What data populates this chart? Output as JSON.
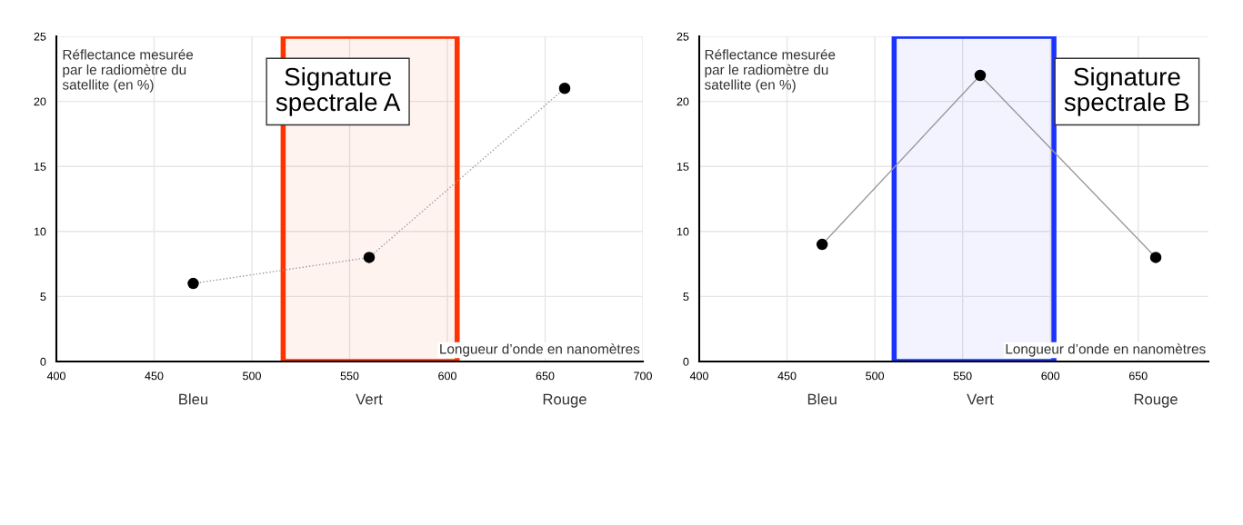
{
  "chart_data": [
    {
      "type": "line",
      "title": "Signature\nspectrale A",
      "ylabel": "Réflectance mesurée\npar le radiomètre du\nsatellite (en %)",
      "xlabel": "Longueur d’onde en nanomètres",
      "x": [
        470,
        560,
        660
      ],
      "series": [
        {
          "color": "#999999",
          "values": [
            6,
            8,
            21
          ]
        }
      ],
      "xlim": [
        400,
        700
      ],
      "xticks": [
        400,
        450,
        500,
        550,
        600,
        650,
        700
      ],
      "ylim": [
        0,
        25
      ],
      "yticks": [
        0,
        5,
        10,
        15,
        20,
        25
      ],
      "grid": true,
      "marker": "circle",
      "line_style": "dotted",
      "bands": [
        {
          "axis": "x",
          "from": 516,
          "to": 605,
          "color": "#ff3300"
        }
      ],
      "annotations": [
        "Bleu",
        "Vert",
        "Rouge"
      ]
    },
    {
      "type": "line",
      "title": "Signature\nspectrale B",
      "ylabel": "Réflectance mesurée\npar le radiomètre du\nsatellite (en %)",
      "xlabel": "Longueur d’onde en nanomètres",
      "x": [
        470,
        560,
        660
      ],
      "series": [
        {
          "color": "#999999",
          "values": [
            9,
            22,
            8
          ]
        }
      ],
      "xlim": [
        400,
        690
      ],
      "xticks": [
        400,
        450,
        500,
        550,
        600,
        650
      ],
      "ylim": [
        0,
        25
      ],
      "yticks": [
        0,
        5,
        10,
        15,
        20,
        25
      ],
      "grid": true,
      "marker": "circle",
      "line_style": "solid",
      "bands": [
        {
          "axis": "x",
          "from": 511,
          "to": 602,
          "color": "#1a33ff"
        }
      ],
      "annotations": [
        "Bleu",
        "Vert",
        "Rouge"
      ]
    }
  ]
}
